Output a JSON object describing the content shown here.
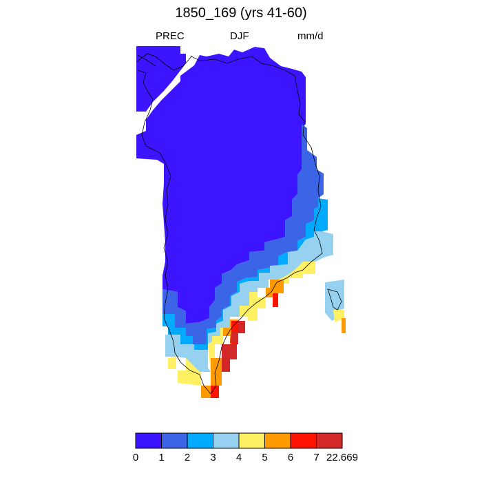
{
  "title": "1850_169 (yrs 41-60)",
  "variable": "PREC",
  "season": "DJF",
  "units": "mm/d",
  "colorbar": {
    "colors": [
      "#3c14ff",
      "#3c64e6",
      "#00aaff",
      "#96d2f0",
      "#fff064",
      "#ff9a00",
      "#ff1400",
      "#d22828"
    ],
    "labels": [
      "0",
      "1",
      "2",
      "3",
      "4",
      "5",
      "6",
      "7",
      "22.669"
    ]
  }
}
